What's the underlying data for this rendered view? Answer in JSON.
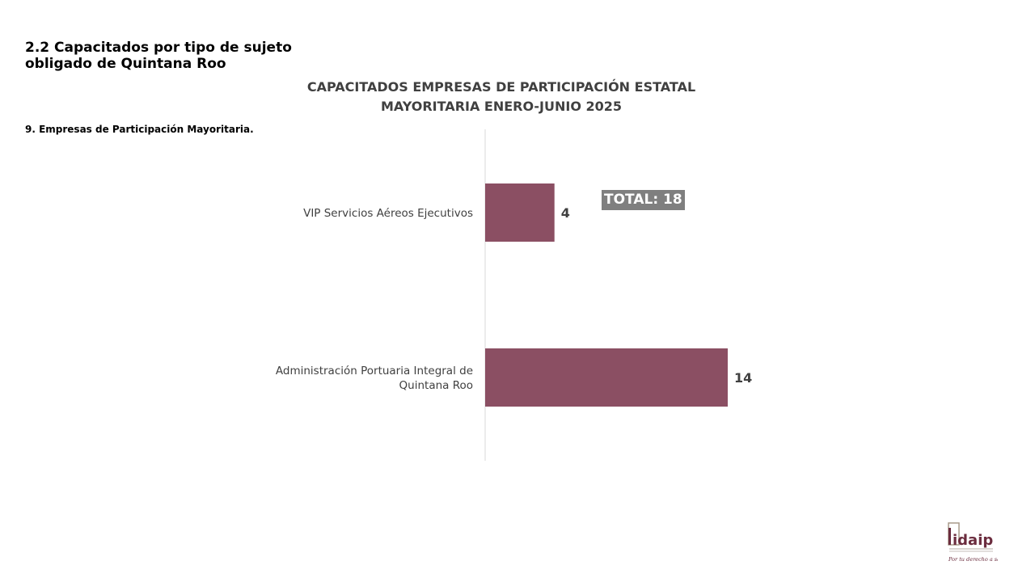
{
  "section": {
    "title": "2.2 Capacitados por tipo de sujeto obligado de Quintana Roo",
    "subtitle": "9. Empresas de Participación Mayoritaria."
  },
  "chart_data": {
    "type": "bar",
    "orientation": "horizontal",
    "title": "CAPACITADOS EMPRESAS DE PARTICIPACIÓN ESTATAL MAYORITARIA ENERO-JUNIO 2025",
    "categories": [
      "VIP Servicios Aéreos Ejecutivos",
      "Administración Portuaria Integral de Quintana Roo"
    ],
    "values": [
      4,
      14
    ],
    "xlim": [
      0,
      14
    ],
    "grid": false,
    "bar_color": "#8b4f63",
    "xlabel": "",
    "ylabel": ""
  },
  "total_badge": "TOTAL: 18",
  "logo": {
    "text": "idaip",
    "tagline": "Por tu derecho a saber",
    "color": "#6b2c3e"
  }
}
